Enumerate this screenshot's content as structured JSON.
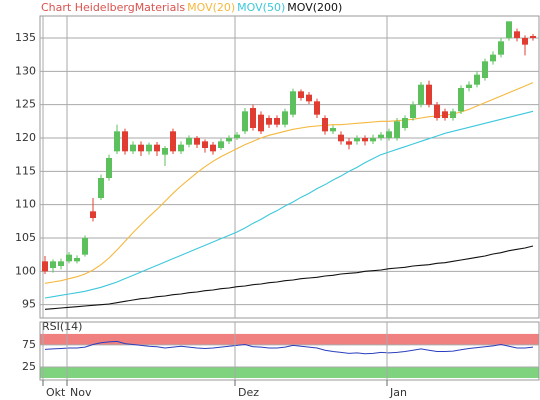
{
  "chart_data": [
    {
      "type": "candlestick",
      "title": "Chart HeidelbergMaterials",
      "title_color": "#d9534f",
      "up_color": "#5cc05c",
      "down_color": "#e03c31",
      "categories": [
        "Okt",
        null,
        null,
        "Nov",
        null,
        null,
        null,
        null,
        null,
        null,
        null,
        null,
        null,
        null,
        null,
        null,
        null,
        null,
        null,
        null,
        null,
        null,
        null,
        null,
        "Dez",
        null,
        null,
        null,
        null,
        null,
        null,
        null,
        null,
        null,
        null,
        null,
        null,
        null,
        null,
        null,
        null,
        null,
        null,
        "Jan",
        null,
        null,
        null,
        null,
        null,
        null,
        null,
        null,
        null,
        null,
        null,
        null,
        null,
        null,
        null,
        null,
        null,
        null
      ],
      "open": [
        101.5,
        100.5,
        100.8,
        101.5,
        101.5,
        102.5,
        109,
        111,
        114,
        118,
        121,
        118,
        119,
        118,
        119,
        117.5,
        121,
        118,
        119,
        120,
        119.5,
        119,
        118.5,
        119.5,
        120,
        121,
        124.5,
        123.5,
        123,
        123,
        122,
        123.5,
        127,
        126.5,
        125.5,
        123,
        121,
        120.5,
        119.5,
        119.5,
        120,
        119.5,
        120,
        120,
        120,
        121.5,
        123,
        125,
        128,
        125,
        124,
        123,
        124,
        127.5,
        128,
        129,
        131.5,
        132.5,
        135,
        136,
        135,
        135.3
      ],
      "high": [
        102.3,
        101.8,
        101.9,
        102.9,
        102.4,
        105.4,
        111,
        114.5,
        117.5,
        122,
        121.4,
        119.5,
        119.5,
        119.3,
        119.4,
        118.8,
        121.4,
        119.5,
        120.4,
        120.3,
        119.8,
        119.4,
        119.9,
        120.4,
        120.9,
        124.5,
        125,
        124,
        123.4,
        123.4,
        124.4,
        127.4,
        127.3,
        126.9,
        125.9,
        123.4,
        121.9,
        121,
        120,
        120.4,
        120.4,
        120.5,
        120.9,
        121.4,
        123,
        123.4,
        125.5,
        128.4,
        128.6,
        125.4,
        124.4,
        124.4,
        127.9,
        128.5,
        130,
        131.9,
        133,
        135,
        137.5,
        136.4,
        135.4,
        135.6
      ],
      "low": [
        99.6,
        99.8,
        100.3,
        101.2,
        101.2,
        102.2,
        107.5,
        110.7,
        113.6,
        117.6,
        117.5,
        117.6,
        117.3,
        117.5,
        117.3,
        115.8,
        117.6,
        117.6,
        118.6,
        118.5,
        117.8,
        117.5,
        118.2,
        119.1,
        119.7,
        120.6,
        121.1,
        120.6,
        121.5,
        121.6,
        121.6,
        123.1,
        125.6,
        125.1,
        123,
        120.5,
        120.6,
        119,
        118.3,
        119,
        118.9,
        119.1,
        119.6,
        119.6,
        119.6,
        121.1,
        122.6,
        124.6,
        124.6,
        122.6,
        122.6,
        122.6,
        123.6,
        127,
        127.6,
        128.6,
        131,
        132.1,
        134.6,
        134.5,
        132.4,
        134.6
      ],
      "close": [
        100,
        101.5,
        101.5,
        102.5,
        102,
        105,
        108,
        114,
        117,
        121,
        118,
        119,
        118,
        119,
        118,
        118.5,
        118,
        119,
        120,
        119,
        118.5,
        118,
        119.5,
        120,
        120.5,
        124,
        121.5,
        121,
        122,
        122,
        124,
        127,
        126,
        125.5,
        123.5,
        121,
        121.5,
        119.5,
        119,
        120,
        119.5,
        120,
        120.5,
        121,
        122.5,
        123,
        125,
        128,
        125,
        123,
        123,
        124,
        127.5,
        128,
        129.5,
        131.5,
        132.5,
        134.5,
        137.5,
        135,
        134,
        135
      ],
      "series": [
        {
          "name": "MOV(20)",
          "color": "#f5b83d",
          "values": [
            98.2,
            98.4,
            98.6,
            98.9,
            99.2,
            99.6,
            100.2,
            101,
            102,
            103.2,
            104.5,
            105.8,
            107,
            108.2,
            109.3,
            110.5,
            111.7,
            112.8,
            113.8,
            114.8,
            115.7,
            116.5,
            117.2,
            117.8,
            118.4,
            119,
            119.5,
            120,
            120.4,
            120.7,
            121,
            121.3,
            121.5,
            121.7,
            121.8,
            121.9,
            122,
            122,
            122.1,
            122.2,
            122.3,
            122.4,
            122.5,
            122.5,
            122.6,
            122.7,
            122.8,
            123,
            123.2,
            123.3,
            123.4,
            123.6,
            123.9,
            124.3,
            124.8,
            125.3,
            125.8,
            126.3,
            126.8,
            127.3,
            127.8,
            128.3
          ]
        },
        {
          "name": "MOV(50)",
          "color": "#3cc8dc",
          "values": [
            96.0,
            96.2,
            96.4,
            96.6,
            96.8,
            97.0,
            97.3,
            97.6,
            98.0,
            98.4,
            98.9,
            99.4,
            99.9,
            100.4,
            100.9,
            101.4,
            101.9,
            102.4,
            102.9,
            103.4,
            103.9,
            104.4,
            104.9,
            105.4,
            105.9,
            106.5,
            107.2,
            107.8,
            108.5,
            109.1,
            109.8,
            110.4,
            111.1,
            111.7,
            112.4,
            113.0,
            113.7,
            114.3,
            115.0,
            115.6,
            116.3,
            116.9,
            117.5,
            117.9,
            118.3,
            118.7,
            119.1,
            119.5,
            119.9,
            120.3,
            120.7,
            121.0,
            121.3,
            121.6,
            121.9,
            122.2,
            122.5,
            122.8,
            123.1,
            123.4,
            123.7,
            124.0
          ]
        },
        {
          "name": "MOV(200)",
          "color": "#111111",
          "values": [
            94.3,
            94.4,
            94.5,
            94.6,
            94.7,
            94.8,
            94.9,
            95.0,
            95.1,
            95.3,
            95.5,
            95.7,
            95.9,
            96.0,
            96.2,
            96.3,
            96.5,
            96.6,
            96.8,
            96.9,
            97.1,
            97.2,
            97.4,
            97.5,
            97.7,
            97.8,
            98.0,
            98.1,
            98.3,
            98.4,
            98.6,
            98.7,
            98.9,
            99.0,
            99.1,
            99.3,
            99.4,
            99.6,
            99.7,
            99.8,
            100.0,
            100.1,
            100.2,
            100.4,
            100.5,
            100.6,
            100.8,
            100.9,
            101.0,
            101.2,
            101.3,
            101.5,
            101.7,
            101.9,
            102.1,
            102.3,
            102.6,
            102.8,
            103.1,
            103.3,
            103.5,
            103.8
          ]
        }
      ],
      "ylim": [
        93,
        138.3
      ],
      "yticks": [
        95,
        100,
        105,
        110,
        115,
        120,
        125,
        130,
        135
      ],
      "grid": true
    },
    {
      "type": "line",
      "title": "RSI(14)",
      "color": "#2a3fbf",
      "values": [
        65,
        66,
        67,
        68,
        68,
        70,
        76,
        80,
        82,
        83,
        78,
        76,
        74,
        72,
        71,
        68,
        70,
        72,
        70,
        68,
        67,
        68,
        70,
        72,
        74,
        76,
        71,
        70,
        68,
        68,
        70,
        74,
        72,
        70,
        68,
        63,
        60,
        58,
        56,
        57,
        55,
        56,
        58,
        57,
        58,
        60,
        63,
        66,
        63,
        60,
        60,
        61,
        64,
        67,
        69,
        71,
        73,
        76,
        72,
        68,
        68,
        70
      ],
      "bands": [
        {
          "from": 75,
          "to": 100,
          "color": "#f08080"
        },
        {
          "from": 0,
          "to": 25,
          "color": "#7fd37f"
        }
      ],
      "ylim": [
        -4.5,
        127
      ],
      "yticks": [
        25,
        75
      ],
      "grid": true
    }
  ]
}
